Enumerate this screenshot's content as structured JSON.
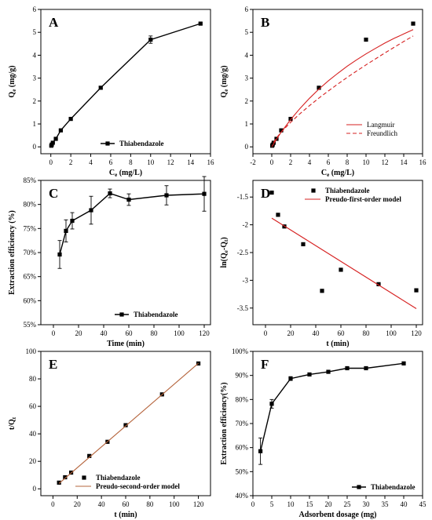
{
  "chart_data": [
    {
      "id": "A",
      "panel_label": "A",
      "type": "line",
      "xlabel": "Ce (mg/L)",
      "xlabel_parts": [
        "C",
        "e",
        " (mg/L)"
      ],
      "ylabel": "Qe (mg/g)",
      "ylabel_parts": [
        "Q",
        "e",
        " (mg/g)"
      ],
      "xlim": [
        -1,
        16
      ],
      "ylim": [
        -0.3,
        6
      ],
      "xticks": [
        0,
        2,
        4,
        6,
        8,
        10,
        12,
        14,
        16
      ],
      "yticks": [
        0,
        1,
        2,
        3,
        4,
        5,
        6
      ],
      "legend_position": "bottom-right",
      "series": [
        {
          "name": "Thiabendazole",
          "color": "#000000",
          "style": "line-marker",
          "marker": "square",
          "x": [
            0.05,
            0.1,
            0.2,
            0.5,
            1,
            2,
            5,
            10,
            15
          ],
          "y": [
            0.05,
            0.1,
            0.18,
            0.35,
            0.72,
            1.22,
            2.58,
            4.68,
            5.38
          ],
          "err": [
            0.02,
            0.02,
            0.02,
            0.03,
            0.03,
            0.05,
            0.06,
            0.16,
            0.04
          ]
        }
      ]
    },
    {
      "id": "B",
      "panel_label": "B",
      "type": "scatter",
      "xlabel": "Ce (mg/L)",
      "xlabel_parts": [
        "C",
        "e",
        " (mg/L)"
      ],
      "ylabel": "Qe (mg/g)",
      "ylabel_parts": [
        "Q",
        "e",
        " (mg/g)"
      ],
      "xlim": [
        -2,
        16
      ],
      "ylim": [
        -0.3,
        6
      ],
      "xticks": [
        -2,
        0,
        2,
        4,
        6,
        8,
        10,
        12,
        14,
        16
      ],
      "yticks": [
        0,
        1,
        2,
        3,
        4,
        5,
        6
      ],
      "legend_position": "bottom-right",
      "series": [
        {
          "name": "",
          "color": "#000000",
          "style": "marker",
          "marker": "square",
          "x": [
            0.05,
            0.1,
            0.2,
            0.5,
            1,
            2,
            5,
            10,
            15
          ],
          "y": [
            0.05,
            0.1,
            0.18,
            0.35,
            0.72,
            1.22,
            2.58,
            4.68,
            5.38
          ]
        },
        {
          "name": "Langmuir",
          "color": "#d62020",
          "style": "solid",
          "x": [
            0,
            0.5,
            1,
            2,
            3,
            4,
            5,
            6,
            7,
            8,
            9,
            10,
            11,
            12,
            13,
            14,
            15
          ],
          "y": [
            0,
            0.33,
            0.64,
            1.19,
            1.68,
            2.12,
            2.52,
            2.88,
            3.21,
            3.52,
            3.8,
            4.06,
            4.3,
            4.53,
            4.74,
            4.93,
            5.12
          ]
        },
        {
          "name": "Freundlich",
          "color": "#d62020",
          "style": "dashed",
          "x": [
            0.2,
            0.5,
            1,
            2,
            3,
            4,
            5,
            6,
            7,
            8,
            9,
            10,
            11,
            12,
            13,
            14,
            15
          ],
          "y": [
            0.19,
            0.39,
            0.64,
            1.07,
            1.45,
            1.8,
            2.13,
            2.44,
            2.74,
            3.03,
            3.31,
            3.58,
            3.84,
            4.1,
            4.35,
            4.6,
            4.84
          ]
        }
      ]
    },
    {
      "id": "C",
      "panel_label": "C",
      "type": "line",
      "xlabel": "Time (min)",
      "ylabel": "Extraction efficiency (%)",
      "xlim": [
        -10,
        125
      ],
      "ylim": [
        55,
        85
      ],
      "xticks": [
        0,
        20,
        40,
        60,
        80,
        100,
        120
      ],
      "yticks": [
        55,
        60,
        65,
        70,
        75,
        80,
        85
      ],
      "ytick_suffix": "%",
      "legend_position": "bottom-right",
      "series": [
        {
          "name": "Thiabendazole",
          "color": "#000000",
          "style": "line-marker",
          "marker": "square",
          "x": [
            5,
            10,
            15,
            30,
            45,
            60,
            90,
            120
          ],
          "y": [
            69.6,
            74.5,
            76.6,
            78.8,
            82.3,
            81.0,
            81.9,
            82.2
          ],
          "err": [
            2.9,
            2.3,
            1.7,
            2.9,
            0.9,
            1.2,
            2.0,
            3.6
          ]
        }
      ]
    },
    {
      "id": "D",
      "panel_label": "D",
      "type": "scatter",
      "xlabel": "t (min)",
      "ylabel": "ln(Qe-Qt)",
      "ylabel_parts": [
        "ln(Q",
        "e",
        "-Q",
        "t",
        ")"
      ],
      "xlim": [
        -10,
        125
      ],
      "ylim": [
        -3.8,
        -1.2
      ],
      "xticks": [
        0,
        20,
        40,
        60,
        80,
        100,
        120
      ],
      "yticks": [
        -3.5,
        -3.0,
        -2.5,
        -2.0,
        -1.5
      ],
      "legend_position": "top-right",
      "series": [
        {
          "name": "Thiabendazole",
          "color": "#000000",
          "style": "marker",
          "marker": "square",
          "x": [
            5,
            10,
            15,
            30,
            45,
            60,
            90,
            120
          ],
          "y": [
            -1.42,
            -1.82,
            -2.03,
            -2.35,
            -3.19,
            -2.81,
            -3.07,
            -3.18
          ]
        },
        {
          "name": "Preudo-first-order model",
          "color": "#d62020",
          "style": "solid",
          "x": [
            5,
            120
          ],
          "y": [
            -1.88,
            -3.51
          ]
        }
      ]
    },
    {
      "id": "E",
      "panel_label": "E",
      "type": "scatter",
      "xlabel": "t (min)",
      "ylabel": "t/Qt",
      "ylabel_parts": [
        "t/Q",
        "t",
        ""
      ],
      "xlim": [
        -10,
        130
      ],
      "ylim": [
        -5,
        100
      ],
      "xticks": [
        0,
        20,
        40,
        60,
        80,
        100,
        120
      ],
      "yticks": [
        0,
        20,
        40,
        60,
        80,
        100
      ],
      "legend_position": "bottom-right",
      "series": [
        {
          "name": "Thiabendazole",
          "color": "#000000",
          "style": "marker",
          "marker": "square",
          "x": [
            5,
            10,
            15,
            30,
            45,
            60,
            90,
            120
          ],
          "y": [
            4.5,
            8.4,
            11.8,
            23.9,
            34.2,
            46.3,
            68.7,
            91.2
          ]
        },
        {
          "name": "Preudo-second-order model",
          "color": "#b5643c",
          "style": "solid",
          "x": [
            5,
            120
          ],
          "y": [
            3.9,
            91.3
          ]
        }
      ]
    },
    {
      "id": "F",
      "panel_label": "F",
      "type": "line",
      "xlabel": "Adsorbent dosage (mg)",
      "ylabel": "Extraction efficiency(%)",
      "xlim": [
        0,
        45
      ],
      "ylim": [
        40,
        100
      ],
      "xticks": [
        0,
        5,
        10,
        15,
        20,
        25,
        30,
        35,
        40,
        45
      ],
      "yticks": [
        40,
        50,
        60,
        70,
        80,
        90,
        100
      ],
      "ytick_suffix": "%",
      "legend_position": "bottom-right",
      "series": [
        {
          "name": "Thiabendazole",
          "color": "#000000",
          "style": "line-marker",
          "marker": "square",
          "x": [
            2,
            5,
            10,
            15,
            20,
            25,
            30,
            40
          ],
          "y": [
            58.5,
            78.2,
            88.7,
            90.4,
            91.5,
            93.0,
            93.0,
            95.0
          ],
          "err": [
            5.5,
            1.8,
            0.8,
            0.6,
            0.5,
            0.4,
            0.4,
            0.4
          ]
        }
      ]
    }
  ]
}
